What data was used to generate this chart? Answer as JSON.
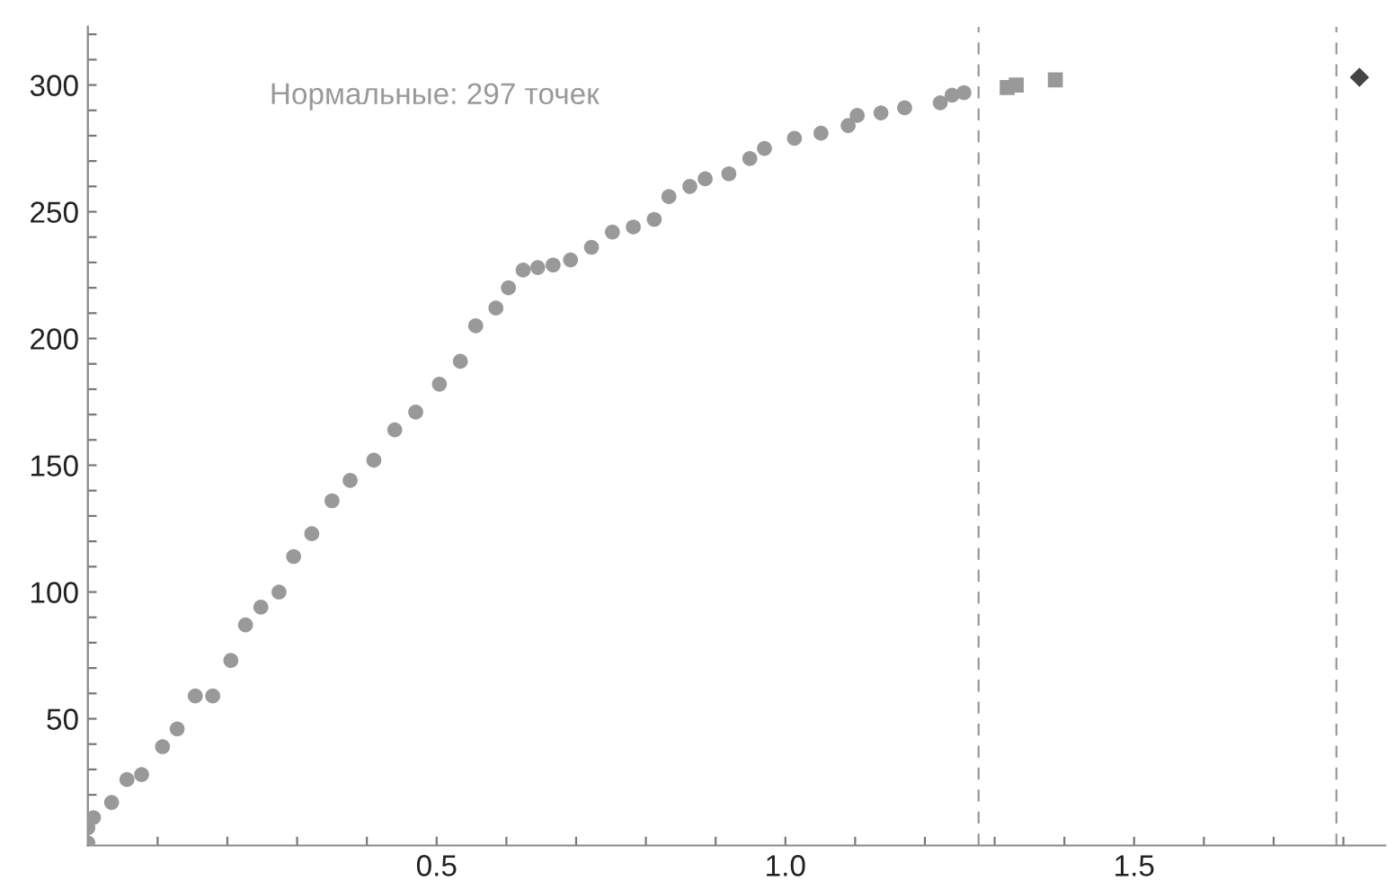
{
  "chart_data": {
    "type": "scatter",
    "annotations": [
      "Нормальные: 297 точек"
    ],
    "xlim": [
      0,
      1.86
    ],
    "ylim": [
      0,
      323
    ],
    "xticks": [
      {
        "value": 0.1,
        "label": null
      },
      {
        "value": 0.2,
        "label": null
      },
      {
        "value": 0.3,
        "label": null
      },
      {
        "value": 0.4,
        "label": null
      },
      {
        "value": 0.5,
        "label": "0.5"
      },
      {
        "value": 0.6,
        "label": null
      },
      {
        "value": 0.7,
        "label": null
      },
      {
        "value": 0.8,
        "label": null
      },
      {
        "value": 0.9,
        "label": null
      },
      {
        "value": 1.0,
        "label": "1.0"
      },
      {
        "value": 1.1,
        "label": null
      },
      {
        "value": 1.2,
        "label": null
      },
      {
        "value": 1.3,
        "label": null
      },
      {
        "value": 1.4,
        "label": null
      },
      {
        "value": 1.5,
        "label": "1.5"
      },
      {
        "value": 1.6,
        "label": null
      },
      {
        "value": 1.7,
        "label": null
      },
      {
        "value": 1.8,
        "label": null
      }
    ],
    "yticks": [
      {
        "value": 10,
        "label": null
      },
      {
        "value": 20,
        "label": null
      },
      {
        "value": 30,
        "label": null
      },
      {
        "value": 40,
        "label": null
      },
      50,
      {
        "value": 60,
        "label": null
      },
      {
        "value": 70,
        "label": null
      },
      {
        "value": 80,
        "label": null
      },
      {
        "value": 90,
        "label": null
      },
      100,
      {
        "value": 110,
        "label": null
      },
      {
        "value": 120,
        "label": null
      },
      {
        "value": 130,
        "label": null
      },
      {
        "value": 140,
        "label": null
      },
      150,
      {
        "value": 160,
        "label": null
      },
      {
        "value": 170,
        "label": null
      },
      {
        "value": 180,
        "label": null
      },
      {
        "value": 190,
        "label": null
      },
      200,
      {
        "value": 210,
        "label": null
      },
      {
        "value": 220,
        "label": null
      },
      {
        "value": 230,
        "label": null
      },
      {
        "value": 240,
        "label": null
      },
      250,
      {
        "value": 260,
        "label": null
      },
      {
        "value": 270,
        "label": null
      },
      {
        "value": 280,
        "label": null
      },
      {
        "value": 290,
        "label": null
      },
      300,
      {
        "value": 310,
        "label": null
      },
      {
        "value": 320,
        "label": null
      }
    ],
    "grid": false,
    "legend": false,
    "ref_lines": [
      {
        "axis": "x",
        "value": 1.277,
        "label": null,
        "color": "#999999",
        "line_style": "dashed"
      },
      {
        "axis": "x",
        "value": 1.79,
        "label": null,
        "color": "#999999",
        "line_style": "dashed"
      }
    ],
    "series": [
      {
        "color": "#999999",
        "marker": "circle",
        "x": [
          0.0,
          0.0,
          0.008,
          0.034,
          0.056,
          0.077,
          0.107,
          0.128,
          0.154,
          0.179,
          0.205,
          0.226,
          0.248,
          0.274,
          0.295,
          0.321,
          0.35,
          0.376,
          0.41,
          0.44,
          0.47,
          0.504,
          0.534,
          0.556,
          0.585,
          0.603,
          0.624,
          0.645,
          0.667,
          0.692,
          0.722,
          0.752,
          0.782,
          0.812,
          0.833,
          0.863,
          0.885,
          0.919,
          0.949,
          0.97,
          1.013,
          1.051,
          1.09,
          1.103,
          1.137,
          1.171,
          1.222,
          1.239,
          1.256
        ],
        "values": [
          1,
          7,
          11,
          17,
          26,
          28,
          39,
          46,
          59,
          59,
          73,
          87,
          94,
          100,
          114,
          123,
          136,
          144,
          152,
          164,
          171,
          182,
          191,
          205,
          212,
          220,
          227,
          228,
          229,
          231,
          236,
          242,
          244,
          247,
          256,
          260,
          263,
          265,
          271,
          275,
          279,
          281,
          284,
          288,
          289,
          291,
          293,
          296,
          297
        ]
      },
      {
        "color": "#999999",
        "marker": "square",
        "x": [
          1.318,
          1.331,
          1.387
        ],
        "values": [
          299,
          300,
          302
        ]
      },
      {
        "color": "#444444",
        "marker": "diamond",
        "x": [
          1.823
        ],
        "values": [
          303
        ]
      }
    ]
  }
}
